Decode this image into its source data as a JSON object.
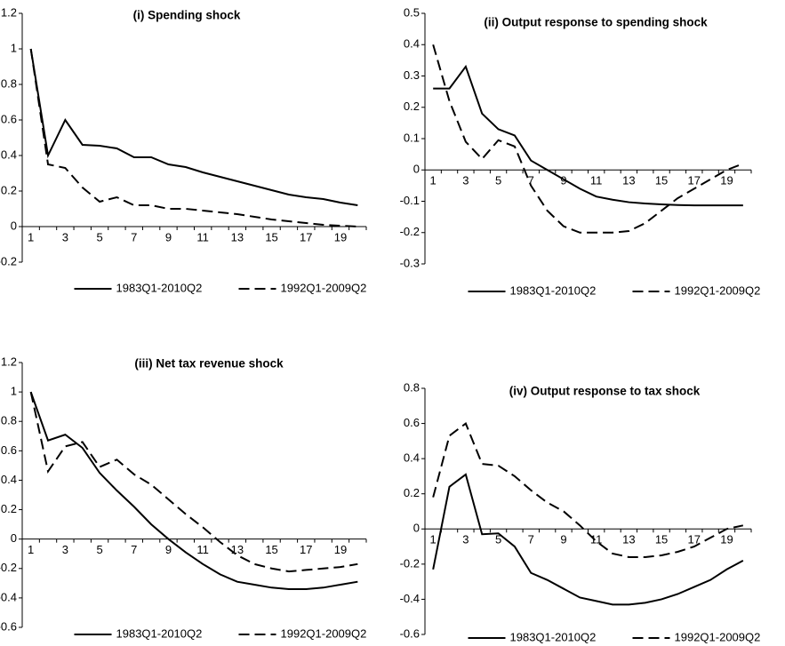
{
  "chart_data": [
    {
      "type": "line",
      "title": "(i) Spending shock",
      "legend": "bottom",
      "categories": [
        "1",
        null,
        "3",
        null,
        "5",
        null,
        "7",
        null,
        "9",
        null,
        "11",
        null,
        "13",
        null,
        "15",
        null,
        "17",
        null,
        "19",
        null
      ],
      "ylim": [
        -0.2,
        1.2
      ],
      "yticks": [
        -0.2,
        0,
        0.2,
        0.4,
        0.6,
        0.8,
        1,
        1.2
      ],
      "series": [
        {
          "name": "1983Q1-2010Q2",
          "color": "#000000",
          "line_style": "solid",
          "values": [
            1,
            0.4,
            0.6,
            0.46,
            0.455,
            0.44,
            0.39,
            0.39,
            0.35,
            0.335,
            0.305,
            0.28,
            0.255,
            0.23,
            0.205,
            0.18,
            0.165,
            0.155,
            0.135,
            0.12
          ]
        },
        {
          "name": "1992Q1-2009Q2",
          "color": "#000000",
          "line_style": "dashed",
          "values": [
            1,
            0.35,
            0.33,
            0.22,
            0.14,
            0.165,
            0.12,
            0.12,
            0.1,
            0.1,
            0.09,
            0.08,
            0.07,
            0.055,
            0.04,
            0.03,
            0.02,
            0.01,
            0.005,
            0
          ]
        }
      ]
    },
    {
      "type": "line",
      "title": "(ii) Output response to spending shock",
      "legend": "bottom",
      "categories": [
        "1",
        null,
        "3",
        null,
        "5",
        null,
        "7",
        null,
        "9",
        null,
        "11",
        null,
        "13",
        null,
        "15",
        null,
        "17",
        null,
        "19",
        null
      ],
      "ylim": [
        -0.3,
        0.5
      ],
      "yticks": [
        -0.3,
        -0.2,
        -0.1,
        0,
        0.1,
        0.2,
        0.3,
        0.4,
        0.5
      ],
      "series": [
        {
          "name": "1983Q1-2010Q2",
          "color": "#000000",
          "line_style": "solid",
          "values": [
            0.26,
            0.26,
            0.33,
            0.18,
            0.13,
            0.11,
            0.03,
            0,
            -0.03,
            -0.06,
            -0.085,
            -0.095,
            -0.103,
            -0.107,
            -0.11,
            -0.112,
            -0.113,
            -0.113,
            -0.113,
            -0.113
          ]
        },
        {
          "name": "1992Q1-2009Q2",
          "color": "#000000",
          "line_style": "dashed",
          "values": [
            0.4,
            0.22,
            0.09,
            0.035,
            0.095,
            0.075,
            -0.05,
            -0.13,
            -0.18,
            -0.2,
            -0.2,
            -0.2,
            -0.195,
            -0.17,
            -0.13,
            -0.09,
            -0.06,
            -0.03,
            0,
            0.02
          ]
        }
      ]
    },
    {
      "type": "line",
      "title": "(iii) Net tax revenue shock",
      "legend": "bottom",
      "categories": [
        "1",
        null,
        "3",
        null,
        "5",
        null,
        "7",
        null,
        "9",
        null,
        "11",
        null,
        "13",
        null,
        "15",
        null,
        "17",
        null,
        "19",
        null
      ],
      "ylim": [
        -0.6,
        1.2
      ],
      "yticks": [
        -0.6,
        -0.4,
        -0.2,
        0,
        0.2,
        0.4,
        0.6,
        0.8,
        1,
        1.2
      ],
      "series": [
        {
          "name": "1983Q1-2010Q2",
          "color": "#000000",
          "line_style": "solid",
          "values": [
            1,
            0.67,
            0.71,
            0.62,
            0.45,
            0.33,
            0.22,
            0.1,
            0,
            -0.09,
            -0.17,
            -0.24,
            -0.29,
            -0.31,
            -0.33,
            -0.34,
            -0.34,
            -0.33,
            -0.31,
            -0.29
          ]
        },
        {
          "name": "1992Q1-2009Q2",
          "color": "#000000",
          "line_style": "dashed",
          "values": [
            1,
            0.46,
            0.63,
            0.66,
            0.49,
            0.54,
            0.44,
            0.37,
            0.27,
            0.17,
            0.08,
            -0.02,
            -0.11,
            -0.17,
            -0.2,
            -0.22,
            -0.21,
            -0.2,
            -0.19,
            -0.17
          ]
        }
      ]
    },
    {
      "type": "line",
      "title": "(iv) Output response to tax shock",
      "legend": "bottom",
      "categories": [
        "1",
        null,
        "3",
        null,
        "5",
        null,
        "7",
        null,
        "9",
        null,
        "11",
        null,
        "13",
        null,
        "15",
        null,
        "17",
        null,
        "19",
        null
      ],
      "ylim": [
        -0.6,
        0.8
      ],
      "yticks": [
        -0.6,
        -0.4,
        -0.2,
        0,
        0.2,
        0.4,
        0.6,
        0.8
      ],
      "series": [
        {
          "name": "1983Q1-2010Q2",
          "color": "#000000",
          "line_style": "solid",
          "values": [
            -0.23,
            0.24,
            0.31,
            -0.03,
            -0.025,
            -0.1,
            -0.25,
            -0.29,
            -0.34,
            -0.39,
            -0.41,
            -0.43,
            -0.43,
            -0.42,
            -0.4,
            -0.37,
            -0.33,
            -0.29,
            -0.23,
            -0.18
          ]
        },
        {
          "name": "1992Q1-2009Q2",
          "color": "#000000",
          "line_style": "dashed",
          "values": [
            0.18,
            0.53,
            0.6,
            0.37,
            0.36,
            0.3,
            0.22,
            0.15,
            0.1,
            0.02,
            -0.07,
            -0.14,
            -0.16,
            -0.16,
            -0.15,
            -0.13,
            -0.1,
            -0.05,
            0,
            0.02
          ]
        }
      ]
    }
  ]
}
